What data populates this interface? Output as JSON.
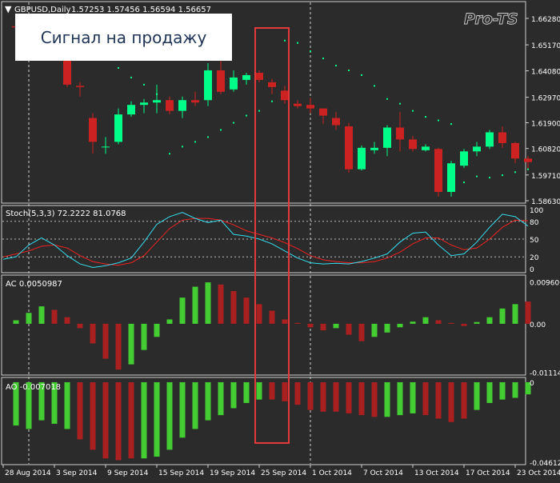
{
  "window": {
    "title": "GBPUSD,Daily",
    "ohlc": "1.57253 1.57456 1.56594 1.56657",
    "watermark": "Pro-TS"
  },
  "annotation": {
    "text": "Сигнал на продажу"
  },
  "colors": {
    "background": "#2b2b2b",
    "bull": "#00ff88",
    "bear": "#cc2222",
    "text": "#ffffff",
    "grid": "#bbbbbb",
    "stoch_main": "#33ddee",
    "stoch_signal": "#ee2222",
    "osc_up": "#44cc33",
    "osc_down": "#aa1f1f",
    "highlight": "#e23a3a"
  },
  "chart_data": [
    {
      "type": "candlestick",
      "title": "GBPUSD,Daily",
      "price_ticks": [
        "1.66280",
        "1.65170",
        "1.64080",
        "1.62970",
        "1.61900",
        "1.60820",
        "1.59710",
        "1.58630"
      ],
      "price_tick_values": [
        1.6628,
        1.6517,
        1.6408,
        1.6297,
        1.619,
        1.6082,
        1.5971,
        1.5863
      ],
      "ylim": [
        1.5863,
        1.6628
      ],
      "date_labels": [
        "28 Aug 2014",
        "3 Sep 2014",
        "9 Sep 2014",
        "15 Sep 2014",
        "19 Sep 2014",
        "25 Sep 2014",
        "1 Oct 2014",
        "7 Oct 2014",
        "13 Oct 2014",
        "17 Oct 2014",
        "23 Oct 2014"
      ],
      "date_label_index": [
        0,
        4,
        8,
        12,
        16,
        20,
        24,
        28,
        32,
        36,
        40
      ],
      "candles": [
        {
          "o": 1.6595,
          "h": 1.66,
          "l": 1.6585,
          "c": 1.659
        },
        {
          "o": 1.659,
          "h": 1.66,
          "l": 1.6582,
          "c": 1.6594
        },
        {
          "o": 1.6585,
          "h": 1.659,
          "l": 1.657,
          "c": 1.6575
        },
        {
          "o": 1.658,
          "h": 1.6592,
          "l": 1.6565,
          "c": 1.657
        },
        {
          "o": 1.651,
          "h": 1.6525,
          "l": 1.634,
          "c": 1.635
        },
        {
          "o": 1.6345,
          "h": 1.636,
          "l": 1.63,
          "c": 1.634
        },
        {
          "o": 1.621,
          "h": 1.623,
          "l": 1.606,
          "c": 1.611
        },
        {
          "o": 1.609,
          "h": 1.613,
          "l": 1.606,
          "c": 1.609
        },
        {
          "o": 1.611,
          "h": 1.625,
          "l": 1.61,
          "c": 1.6225
        },
        {
          "o": 1.6225,
          "h": 1.628,
          "l": 1.6215,
          "c": 1.6265
        },
        {
          "o": 1.6265,
          "h": 1.629,
          "l": 1.623,
          "c": 1.6275
        },
        {
          "o": 1.6275,
          "h": 1.635,
          "l": 1.623,
          "c": 1.6285
        },
        {
          "o": 1.6285,
          "h": 1.63,
          "l": 1.6225,
          "c": 1.624
        },
        {
          "o": 1.624,
          "h": 1.63,
          "l": 1.621,
          "c": 1.6285
        },
        {
          "o": 1.6285,
          "h": 1.632,
          "l": 1.626,
          "c": 1.6275
        },
        {
          "o": 1.6285,
          "h": 1.644,
          "l": 1.626,
          "c": 1.641
        },
        {
          "o": 1.641,
          "h": 1.645,
          "l": 1.631,
          "c": 1.632
        },
        {
          "o": 1.633,
          "h": 1.641,
          "l": 1.632,
          "c": 1.638
        },
        {
          "o": 1.637,
          "h": 1.64,
          "l": 1.635,
          "c": 1.639
        },
        {
          "o": 1.64,
          "h": 1.641,
          "l": 1.636,
          "c": 1.637
        },
        {
          "o": 1.636,
          "h": 1.6375,
          "l": 1.631,
          "c": 1.634
        },
        {
          "o": 1.6325,
          "h": 1.6345,
          "l": 1.627,
          "c": 1.6285
        },
        {
          "o": 1.627,
          "h": 1.6285,
          "l": 1.625,
          "c": 1.626
        },
        {
          "o": 1.6265,
          "h": 1.6295,
          "l": 1.623,
          "c": 1.625
        },
        {
          "o": 1.625,
          "h": 1.625,
          "l": 1.6185,
          "c": 1.622
        },
        {
          "o": 1.621,
          "h": 1.6235,
          "l": 1.616,
          "c": 1.618
        },
        {
          "o": 1.6175,
          "h": 1.619,
          "l": 1.598,
          "c": 1.5995
        },
        {
          "o": 1.5995,
          "h": 1.6095,
          "l": 1.599,
          "c": 1.6085
        },
        {
          "o": 1.6075,
          "h": 1.611,
          "l": 1.606,
          "c": 1.6085
        },
        {
          "o": 1.6085,
          "h": 1.618,
          "l": 1.605,
          "c": 1.617
        },
        {
          "o": 1.617,
          "h": 1.6235,
          "l": 1.607,
          "c": 1.612
        },
        {
          "o": 1.612,
          "h": 1.6135,
          "l": 1.607,
          "c": 1.608
        },
        {
          "o": 1.6075,
          "h": 1.61,
          "l": 1.607,
          "c": 1.609
        },
        {
          "o": 1.608,
          "h": 1.6085,
          "l": 1.588,
          "c": 1.59
        },
        {
          "o": 1.59,
          "h": 1.603,
          "l": 1.588,
          "c": 1.602
        },
        {
          "o": 1.601,
          "h": 1.608,
          "l": 1.6,
          "c": 1.607
        },
        {
          "o": 1.607,
          "h": 1.611,
          "l": 1.605,
          "c": 1.609
        },
        {
          "o": 1.609,
          "h": 1.616,
          "l": 1.608,
          "c": 1.615
        },
        {
          "o": 1.615,
          "h": 1.6175,
          "l": 1.6085,
          "c": 1.6105
        },
        {
          "o": 1.6105,
          "h": 1.611,
          "l": 1.602,
          "c": 1.604
        },
        {
          "o": 1.604,
          "h": 1.605,
          "l": 1.5995,
          "c": 1.6025
        }
      ],
      "psar": [
        null,
        null,
        1.6625,
        1.663,
        1.66,
        1.659,
        1.652,
        1.647,
        1.642,
        1.638,
        1.635,
        1.631,
        1.606,
        1.609,
        1.611,
        1.613,
        1.616,
        1.619,
        1.622,
        1.624,
        1.628,
        1.6535,
        1.6525,
        1.649,
        1.646,
        1.643,
        1.641,
        1.639,
        1.6345,
        1.629,
        1.627,
        1.624,
        1.6215,
        1.62,
        1.6185,
        1.594,
        1.5965,
        1.596,
        1.597,
        1.5983,
        1.5995
      ]
    },
    {
      "type": "line",
      "title": "Stoch(5,3,3) 72.2222 81.0768",
      "ticks": [
        "100",
        "80",
        "50",
        "20",
        "0"
      ],
      "tick_values": [
        100,
        80,
        50,
        20,
        0
      ],
      "ylim": [
        0,
        100
      ],
      "series": [
        {
          "values": [
            20,
            40,
            52,
            40,
            22,
            8,
            2,
            5,
            10,
            18,
            45,
            75,
            88,
            95,
            85,
            78,
            82,
            58,
            55,
            50,
            42,
            30,
            18,
            10,
            8,
            9,
            8,
            12,
            18,
            25,
            45,
            60,
            62,
            40,
            22,
            25,
            45,
            70,
            92,
            88,
            72
          ]
        },
        {
          "values": [
            25,
            30,
            38,
            40,
            35,
            22,
            12,
            8,
            6,
            10,
            22,
            45,
            68,
            82,
            85,
            85,
            82,
            74,
            64,
            58,
            52,
            44,
            34,
            22,
            15,
            12,
            10,
            10,
            12,
            18,
            28,
            42,
            52,
            52,
            40,
            32,
            35,
            50,
            70,
            82,
            81
          ]
        }
      ]
    },
    {
      "type": "bar",
      "title": "AC 0.0050987",
      "ticks": [
        "0.009606",
        "0.00",
        "-0.011141"
      ],
      "tick_values": [
        0.009606,
        0.0,
        -0.011141
      ],
      "ylim": [
        -0.0112,
        0.0097
      ],
      "values": [
        0.0008,
        0.0025,
        0.004,
        0.0032,
        0.0015,
        -0.001,
        -0.0045,
        -0.008,
        -0.0105,
        -0.0093,
        -0.006,
        -0.003,
        0.001,
        0.006,
        0.0085,
        0.0095,
        0.009,
        0.0075,
        0.006,
        0.0045,
        0.003,
        0.001,
        0.0002,
        -0.0008,
        -0.0015,
        -0.001,
        -0.0025,
        -0.004,
        -0.003,
        -0.002,
        -0.0008,
        0.0005,
        0.0015,
        0.0008,
        0.0002,
        -0.0005,
        0.0004,
        0.0015,
        0.0035,
        0.0045,
        0.0051
      ],
      "colors": [
        "up",
        "up",
        "up",
        "down",
        "down",
        "down",
        "down",
        "down",
        "down",
        "up",
        "up",
        "up",
        "up",
        "up",
        "up",
        "up",
        "down",
        "down",
        "down",
        "down",
        "down",
        "down",
        "down",
        "down",
        "down",
        "up",
        "down",
        "down",
        "up",
        "up",
        "up",
        "up",
        "up",
        "down",
        "down",
        "down",
        "up",
        "up",
        "up",
        "up",
        "down"
      ]
    },
    {
      "type": "bar",
      "title": "AO -0.007018",
      "ticks": [
        "0",
        "-0.046129"
      ],
      "tick_values": [
        0,
        -0.046129
      ],
      "ylim": [
        -0.0462,
        0
      ],
      "values": [
        -0.025,
        -0.027,
        -0.022,
        -0.024,
        -0.027,
        -0.033,
        -0.039,
        -0.044,
        -0.045,
        -0.044,
        -0.044,
        -0.043,
        -0.039,
        -0.032,
        -0.027,
        -0.022,
        -0.019,
        -0.015,
        -0.012,
        -0.01,
        -0.01,
        -0.011,
        -0.013,
        -0.016,
        -0.017,
        -0.017,
        -0.018,
        -0.019,
        -0.02,
        -0.02,
        -0.019,
        -0.018,
        -0.019,
        -0.021,
        -0.023,
        -0.021,
        -0.016,
        -0.012,
        -0.01,
        -0.009,
        -0.007
      ],
      "colors": [
        "up",
        "up",
        "up",
        "up",
        "up",
        "down",
        "down",
        "down",
        "down",
        "down",
        "up",
        "up",
        "up",
        "up",
        "up",
        "up",
        "up",
        "up",
        "up",
        "up",
        "down",
        "down",
        "down",
        "down",
        "down",
        "down",
        "down",
        "down",
        "down",
        "up",
        "up",
        "up",
        "down",
        "down",
        "down",
        "down",
        "up",
        "up",
        "up",
        "up",
        "up"
      ]
    }
  ]
}
